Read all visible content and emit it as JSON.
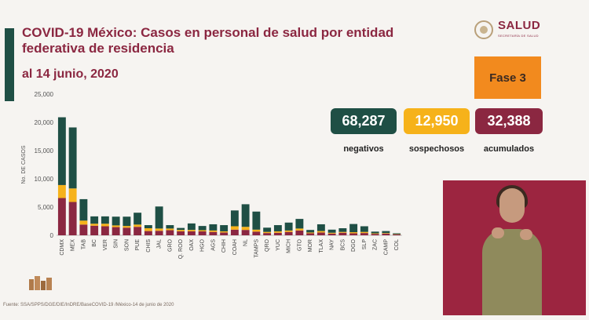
{
  "title": "COVID-19 México: Casos en personal de salud por entidad federativa de residencia",
  "date": "al 14 junio, 2020",
  "logo": {
    "name": "SALUD",
    "subtitle": "SECRETARÍA DE SALUD"
  },
  "fase": "Fase 3",
  "stats": [
    {
      "value": "68,287",
      "label": "negativos",
      "color": "#1f4f45",
      "text_color": "#ffffff"
    },
    {
      "value": "12,950",
      "label": "sospechosos",
      "color": "#f6b21a",
      "text_color": "#ffffff"
    },
    {
      "value": "32,388",
      "label": "acumulados",
      "color": "#8b2741",
      "text_color": "#ffffff"
    }
  ],
  "source": "Fuente: SSA/SPPS/DGE/DIE/InDRE/BaseCOVID-19 /México-14 de junio de 2020",
  "chart_data": {
    "type": "bar",
    "stacked": true,
    "ylabel": "No. DE CASOS",
    "ylim": [
      0,
      25000
    ],
    "yticks": [
      "0",
      "5,000",
      "10,000",
      "15,000",
      "20,000",
      "25,000"
    ],
    "categories": [
      "CDMX",
      "MEX",
      "TAB",
      "BC",
      "VER",
      "SIN",
      "SON",
      "PUE",
      "CHIS",
      "JAL",
      "GRO",
      "Q. ROO",
      "OAX",
      "HGO",
      "AGS",
      "CHIH",
      "COAH",
      "NL",
      "TAMPS",
      "QRO",
      "YUC",
      "MICH",
      "GTO",
      "MOR",
      "TLAX",
      "NAY",
      "BCS",
      "DGO",
      "SLP",
      "ZAC",
      "CAMP",
      "COL"
    ],
    "series": [
      {
        "color": "#8b2741",
        "values": [
          6600,
          5900,
          1900,
          1700,
          1600,
          1450,
          1350,
          1500,
          750,
          800,
          900,
          700,
          700,
          700,
          600,
          500,
          1000,
          950,
          650,
          400,
          450,
          600,
          850,
          350,
          500,
          300,
          450,
          350,
          400,
          250,
          300,
          150
        ]
      },
      {
        "color": "#f6b21a",
        "values": [
          2300,
          2400,
          700,
          350,
          450,
          300,
          300,
          400,
          500,
          400,
          300,
          250,
          250,
          200,
          250,
          200,
          600,
          550,
          350,
          200,
          250,
          250,
          350,
          150,
          250,
          150,
          150,
          200,
          200,
          100,
          100,
          50
        ]
      },
      {
        "color": "#1f4f45",
        "values": [
          12000,
          10800,
          3800,
          1300,
          1300,
          1550,
          1650,
          2100,
          550,
          3900,
          600,
          350,
          1150,
          750,
          1100,
          1100,
          2800,
          4000,
          3200,
          750,
          1100,
          1400,
          1700,
          450,
          1200,
          550,
          650,
          1450,
          1000,
          300,
          350,
          150
        ]
      }
    ],
    "grid": false,
    "legend": "none"
  }
}
